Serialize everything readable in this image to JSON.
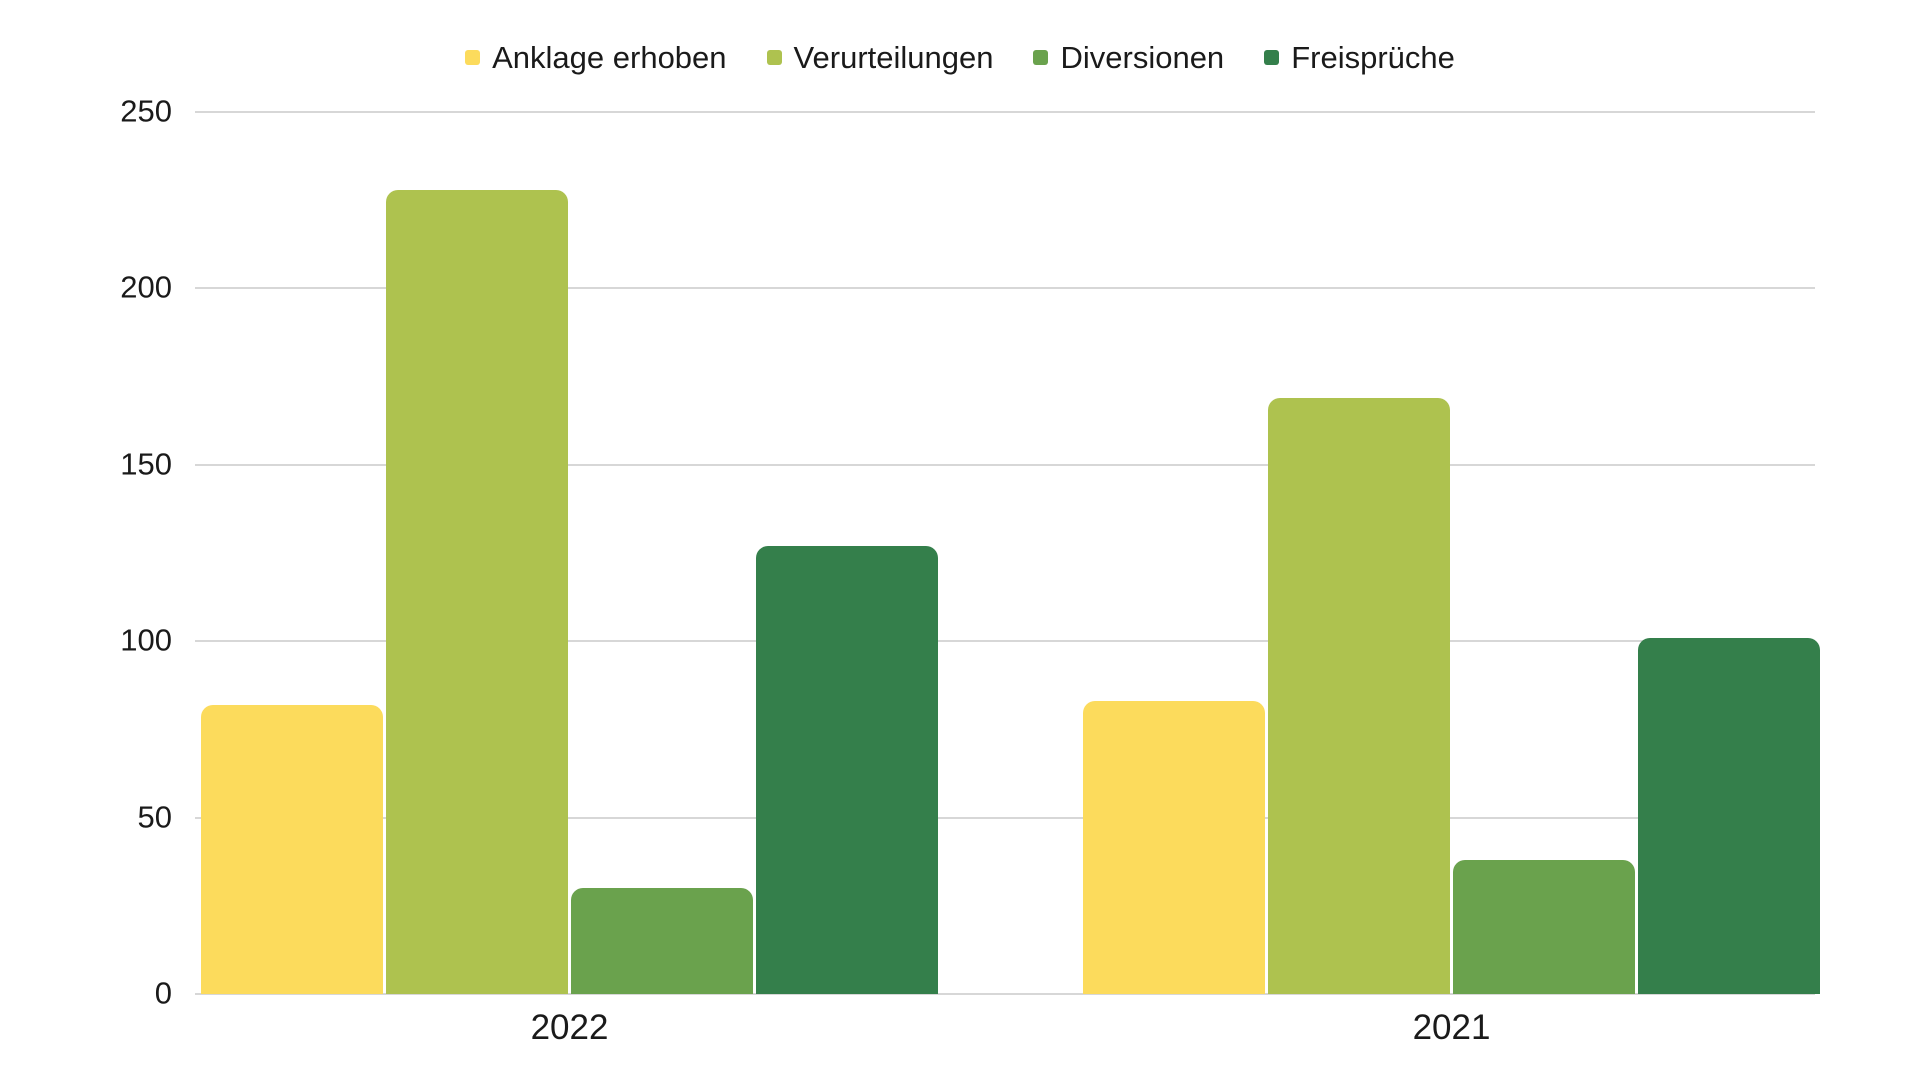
{
  "chart_data": {
    "type": "bar",
    "title": "",
    "xlabel": "",
    "ylabel": "",
    "categories": [
      "2022",
      "2021"
    ],
    "series": [
      {
        "name": "Anklage erhoben",
        "color": "#FCDB5C",
        "values": [
          82,
          83
        ]
      },
      {
        "name": "Verurteilungen",
        "color": "#AEC24F",
        "values": [
          228,
          169
        ]
      },
      {
        "name": "Diversionen",
        "color": "#6AA24D",
        "values": [
          30,
          38
        ]
      },
      {
        "name": "Freisprüche",
        "color": "#347F4B",
        "values": [
          127,
          101
        ]
      }
    ],
    "ylim": [
      0,
      250
    ],
    "yticks": [
      0,
      50,
      100,
      150,
      200,
      250
    ],
    "grid": true,
    "legend_position": "top",
    "background_color": "#FFFFFF",
    "gridline_color": "#D7D7D7",
    "text_color": "#1A1A1A"
  }
}
